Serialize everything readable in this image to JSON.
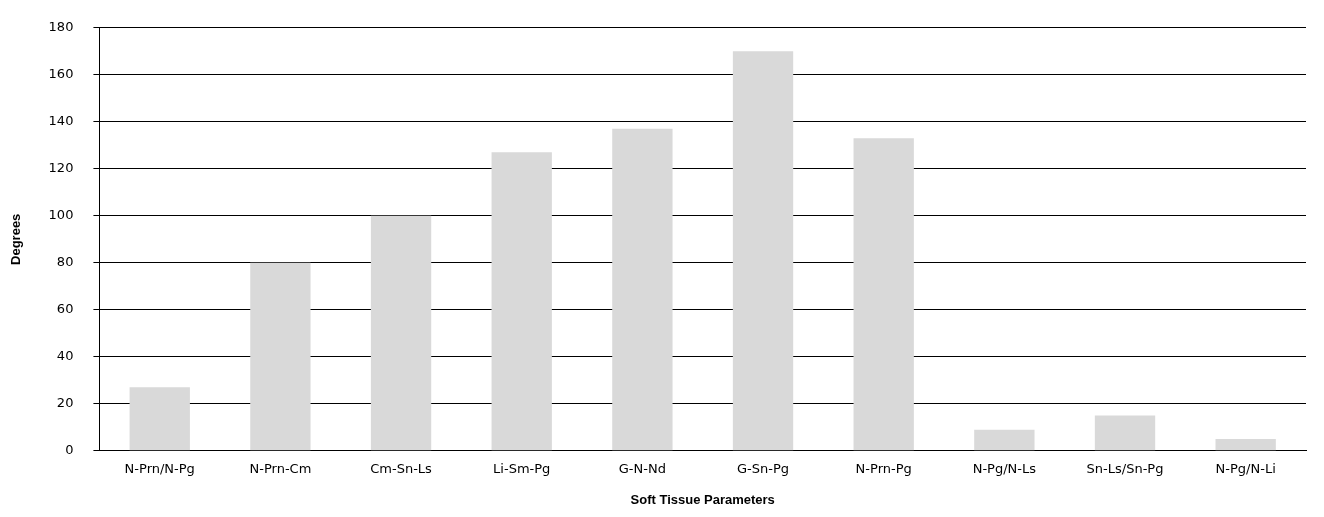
{
  "chart_data": {
    "type": "bar",
    "xlabel": "Soft Tissue Parameters",
    "ylabel": "Degrees",
    "categories": [
      "N-Prn/N-Pg",
      "N-Prn-Cm",
      "Cm-Sn-Ls",
      "Li-Sm-Pg",
      "G-N-Nd",
      "G-Sn-Pg",
      "N-Prn-Pg",
      "N-Pg/N-Ls",
      "Sn-Ls/Sn-Pg",
      "N-Pg/N-Li"
    ],
    "values": [
      27,
      80,
      100,
      127,
      137,
      170,
      133,
      9,
      15,
      5
    ],
    "color": "#d9d9d9",
    "ylim": [
      0,
      180
    ],
    "yticks": [
      0,
      20,
      40,
      60,
      80,
      100,
      120,
      140,
      160,
      180
    ],
    "grid": "y",
    "legend": false
  }
}
